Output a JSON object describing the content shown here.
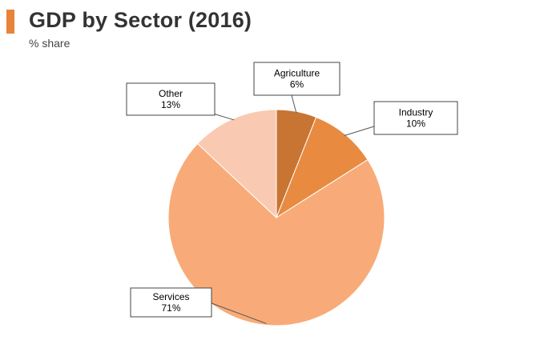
{
  "header": {
    "title": "GDP by Sector (2016)",
    "subtitle": "% share",
    "accent_color": "#e8833a"
  },
  "chart_data": {
    "type": "pie",
    "title": "GDP by Sector (2016)",
    "subtitle": "% share",
    "unit": "%",
    "slices": [
      {
        "label": "Agriculture",
        "value": 6,
        "value_label": "6%",
        "color": "#c87533"
      },
      {
        "label": "Industry",
        "value": 10,
        "value_label": "10%",
        "color": "#e88b40"
      },
      {
        "label": "Services",
        "value": 71,
        "value_label": "71%",
        "color": "#f8ab78"
      },
      {
        "label": "Other",
        "value": 13,
        "value_label": "13%",
        "color": "#f9cab1"
      }
    ],
    "start_angle": "12 o'clock",
    "direction": "clockwise",
    "legend": "none"
  }
}
